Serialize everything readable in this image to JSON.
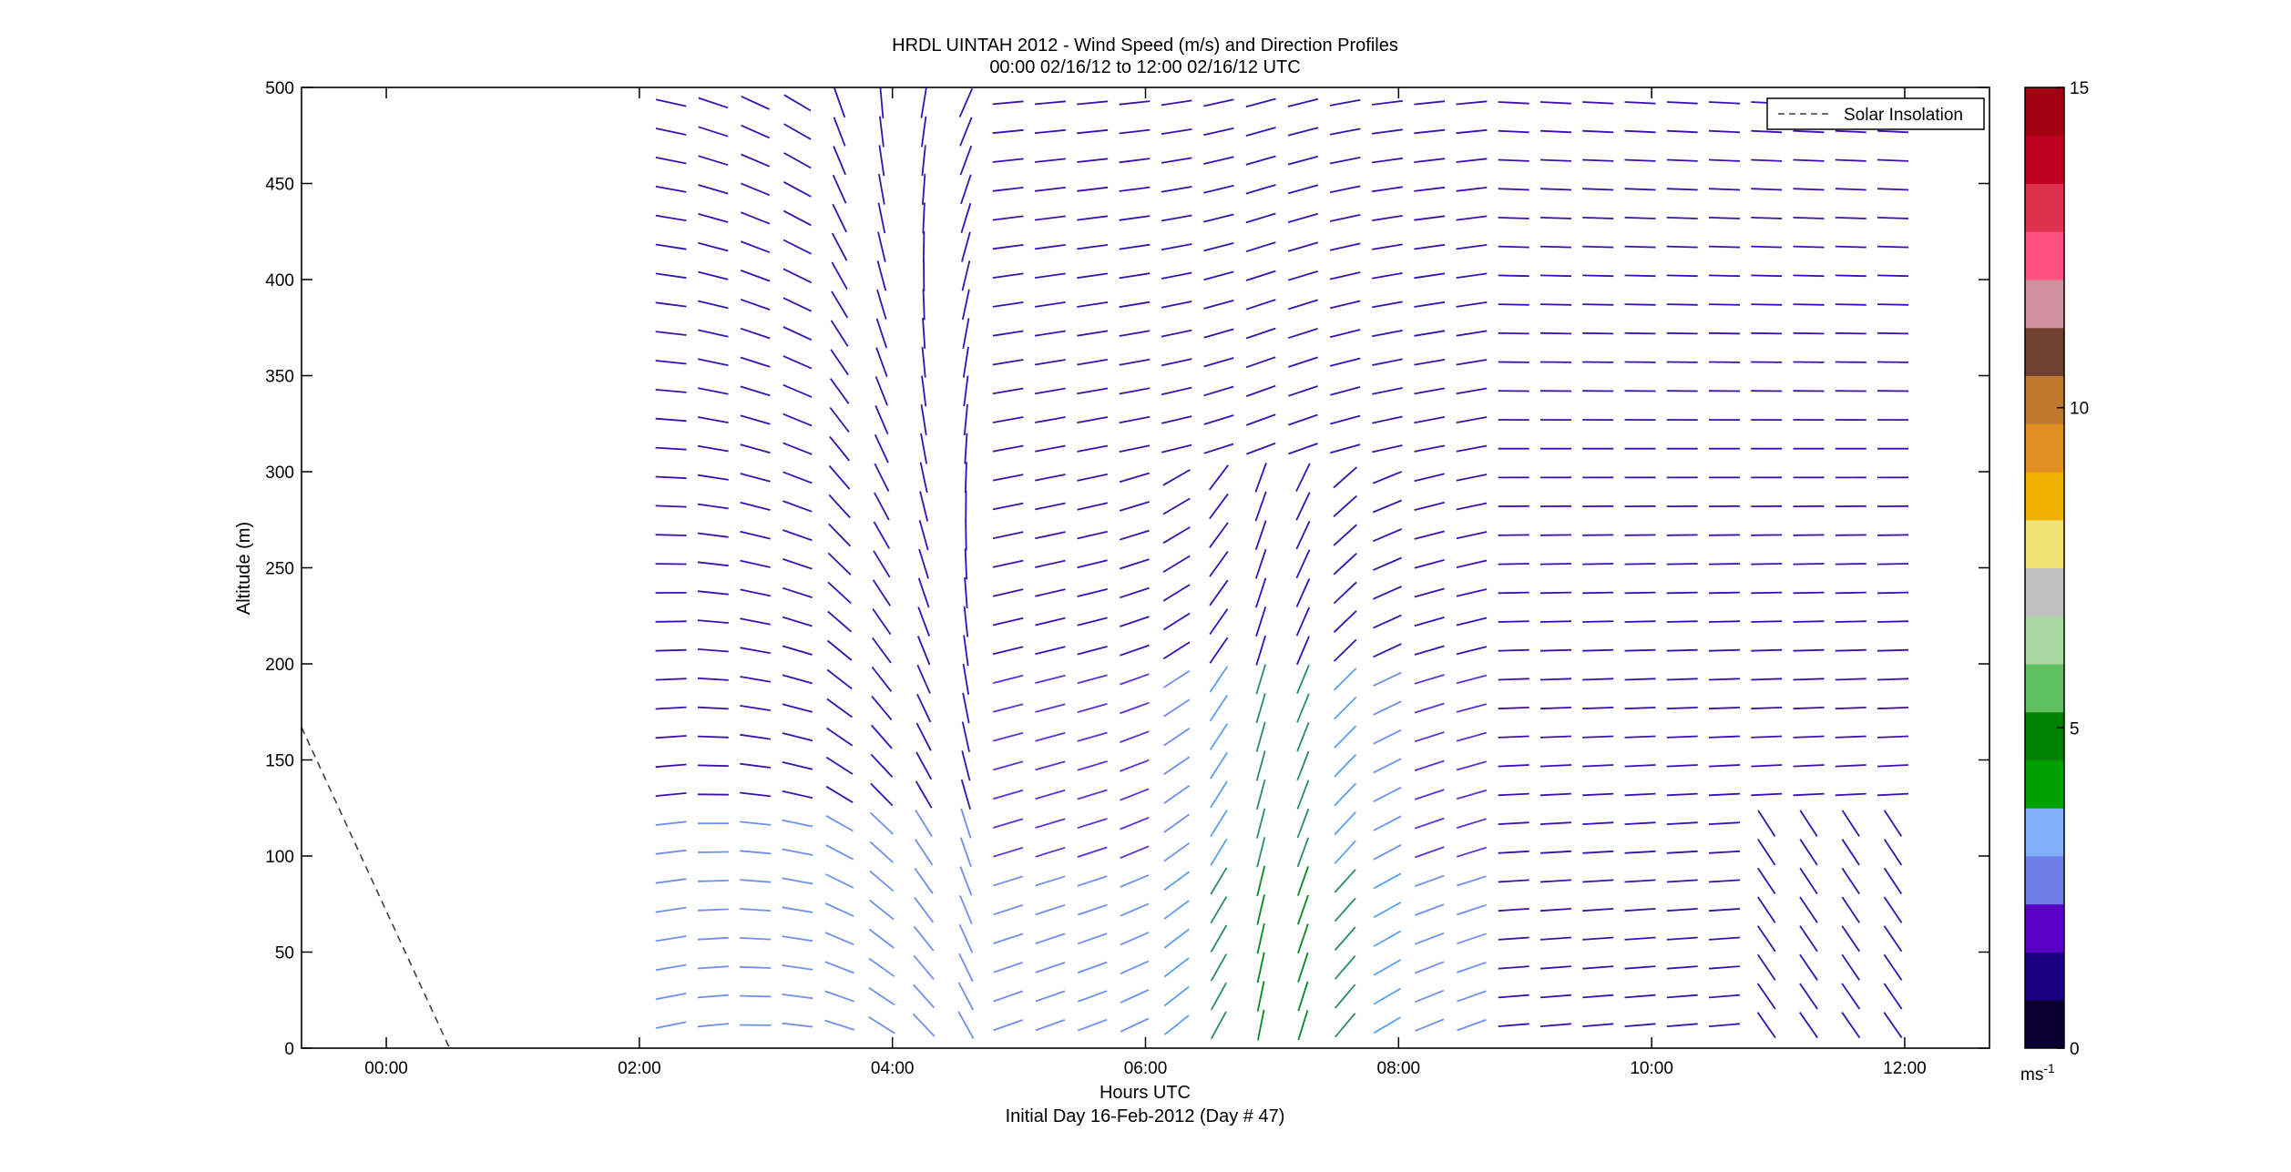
{
  "chart_data": {
    "type": "quiver",
    "title": [
      "HRDL UINTAH 2012 - Wind Speed (m/s) and Direction Profiles",
      "00:00 02/16/12 to 12:00 02/16/12  UTC"
    ],
    "xlabel": "Hours UTC",
    "xlabel2": "Initial Day 16-Feb-2012 (Day # 47)",
    "ylabel": "Altitude (m)",
    "xlim": [
      -0.67,
      12.67
    ],
    "ylim": [
      0,
      500
    ],
    "x_ticks": [
      0,
      2,
      4,
      6,
      8,
      10,
      12
    ],
    "x_tick_labels": [
      "00:00",
      "02:00",
      "04:00",
      "06:00",
      "08:00",
      "10:00",
      "12:00"
    ],
    "y_ticks": [
      0,
      50,
      100,
      150,
      200,
      250,
      300,
      350,
      400,
      450,
      500
    ],
    "y_tick_labels": [
      "0",
      "50",
      "100",
      "150",
      "200",
      "250",
      "300",
      "350",
      "400",
      "450",
      "500"
    ],
    "legend": {
      "entries": [
        "Solar Insolation"
      ],
      "location": "top-right"
    },
    "series": [
      {
        "name": "Solar Insolation",
        "style": "dashed",
        "color": "#404040",
        "x": [
          -0.67,
          0.5
        ],
        "y": [
          167,
          0
        ]
      }
    ],
    "wind_profiles": {
      "time_start": 2.25,
      "time_step": 0.333,
      "time_count": 31,
      "altitude_start": 12,
      "altitude_step": 15,
      "altitude_count": 33,
      "speed_units": "m/s",
      "note": "Wind barbs (direction + speed) sampled every ~20 min from 02:15 to ~12:00 UTC, 15 m vertical spacing. Speeds mostly 1–4 m/s; highest (green, ~5 m/s) near 06:00–07:30 below 100 m."
    },
    "colorbar": {
      "min": 0,
      "max": 15,
      "ticks": [
        0,
        5,
        10,
        15
      ],
      "tick_labels": [
        "0",
        "5",
        "10",
        "15"
      ],
      "label": "ms-1",
      "colors": [
        "#0a0030",
        "#1a0080",
        "#5a00c8",
        "#6f7fe8",
        "#7fb0f8",
        "#00a000",
        "#008000",
        "#60c060",
        "#a8d8a0",
        "#c0c0c0",
        "#f0e070",
        "#f0b000",
        "#e09020",
        "#c07830",
        "#704030",
        "#d090a0",
        "#ff5080",
        "#e03050",
        "#c00020",
        "#a00010"
      ]
    }
  }
}
